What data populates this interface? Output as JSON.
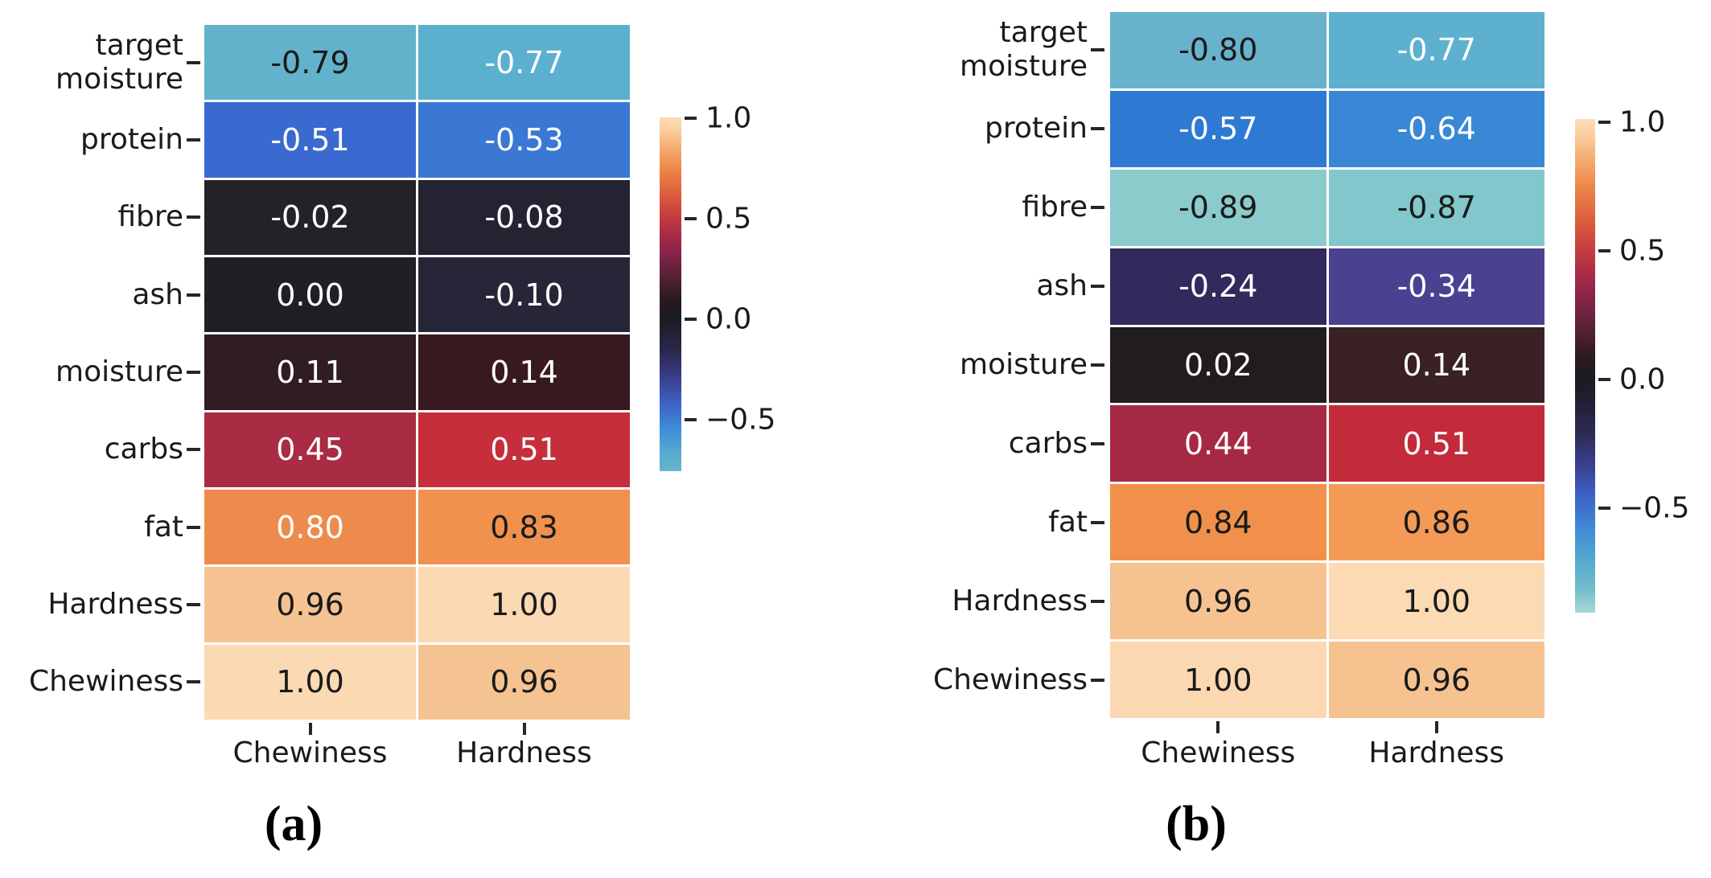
{
  "figure": {
    "background": "#ffffff",
    "text_color": "#1a1a1a",
    "panels": [
      {
        "caption": "(a)",
        "row_labels": [
          "target\nmoisture",
          "protein",
          "fibre",
          "ash",
          "moisture",
          "carbs",
          "fat",
          "Hardness",
          "Chewiness"
        ],
        "col_labels": [
          "Chewiness",
          "Hardness"
        ],
        "cells": [
          [
            {
              "v": "-0.79",
              "bg": "#63b2cc",
              "fg": "#1a1a1a"
            },
            {
              "v": "-0.77",
              "bg": "#5ab0ce",
              "fg": "#ffffff"
            }
          ],
          [
            {
              "v": "-0.51",
              "bg": "#3a69d0",
              "fg": "#ffffff"
            },
            {
              "v": "-0.53",
              "bg": "#3b78d3",
              "fg": "#ffffff"
            }
          ],
          [
            {
              "v": "-0.02",
              "bg": "#222228",
              "fg": "#ffffff"
            },
            {
              "v": "-0.08",
              "bg": "#232332",
              "fg": "#ffffff"
            }
          ],
          [
            {
              "v": "0.00",
              "bg": "#1f1f25",
              "fg": "#ffffff"
            },
            {
              "v": "-0.10",
              "bg": "#272638",
              "fg": "#ffffff"
            }
          ],
          [
            {
              "v": "0.11",
              "bg": "#301d22",
              "fg": "#ffffff"
            },
            {
              "v": "0.14",
              "bg": "#37191f",
              "fg": "#ffffff"
            }
          ],
          [
            {
              "v": "0.45",
              "bg": "#a92b44",
              "fg": "#ffffff"
            },
            {
              "v": "0.51",
              "bg": "#c62e3b",
              "fg": "#ffffff"
            }
          ],
          [
            {
              "v": "0.80",
              "bg": "#ec8b4c",
              "fg": "#ffffff"
            },
            {
              "v": "0.83",
              "bg": "#f0914e",
              "fg": "#1a1a1a"
            }
          ],
          [
            {
              "v": "0.96",
              "bg": "#f5c392",
              "fg": "#1a1a1a"
            },
            {
              "v": "1.00",
              "bg": "#fbd9b3",
              "fg": "#1a1a1a"
            }
          ],
          [
            {
              "v": "1.00",
              "bg": "#fbd9b3",
              "fg": "#1a1a1a"
            },
            {
              "v": "0.96",
              "bg": "#f5c392",
              "fg": "#1a1a1a"
            }
          ]
        ],
        "colorbar": {
          "ticks": [
            "1.0",
            "0.5",
            "0.0",
            "−0.5"
          ],
          "gradient": [
            [
              "0%",
              "#fddcb6"
            ],
            [
              "2.8%",
              "#fbd2a4"
            ],
            [
              "8.4%",
              "#f5ad72"
            ],
            [
              "14%",
              "#ef8a4b"
            ],
            [
              "22.3%",
              "#da5a3c"
            ],
            [
              "27.9%",
              "#c43d3f"
            ],
            [
              "33.5%",
              "#a62a47"
            ],
            [
              "39.1%",
              "#83234a"
            ],
            [
              "45.8%",
              "#4f2130"
            ],
            [
              "51.4%",
              "#2b1a20"
            ],
            [
              "55.9%",
              "#1b1b21"
            ],
            [
              "60.3%",
              "#202032"
            ],
            [
              "67%",
              "#2d2a52"
            ],
            [
              "73.7%",
              "#3a3f8c"
            ],
            [
              "81%",
              "#3c63c8"
            ],
            [
              "88.3%",
              "#418ed6"
            ],
            [
              "95%",
              "#57abce"
            ],
            [
              "100%",
              "#68b5cb"
            ]
          ]
        }
      },
      {
        "caption": "(b)",
        "row_labels": [
          "target\nmoisture",
          "protein",
          "fibre",
          "ash",
          "moisture",
          "carbs",
          "fat",
          "Hardness",
          "Chewiness"
        ],
        "col_labels": [
          "Chewiness",
          "Hardness"
        ],
        "cells": [
          [
            {
              "v": "-0.80",
              "bg": "#68b2cb",
              "fg": "#1a1a1a"
            },
            {
              "v": "-0.77",
              "bg": "#5db1cf",
              "fg": "#ffffff"
            }
          ],
          [
            {
              "v": "-0.57",
              "bg": "#2e7ad3",
              "fg": "#ffffff"
            },
            {
              "v": "-0.64",
              "bg": "#3a88d5",
              "fg": "#ffffff"
            }
          ],
          [
            {
              "v": "-0.89",
              "bg": "#8ccbcb",
              "fg": "#1a1a1a"
            },
            {
              "v": "-0.87",
              "bg": "#82c7cc",
              "fg": "#1a1a1a"
            }
          ],
          [
            {
              "v": "-0.24",
              "bg": "#32295c",
              "fg": "#ffffff"
            },
            {
              "v": "-0.34",
              "bg": "#4a4191",
              "fg": "#ffffff"
            }
          ],
          [
            {
              "v": "0.02",
              "bg": "#211c20",
              "fg": "#ffffff"
            },
            {
              "v": "0.14",
              "bg": "#3a2126",
              "fg": "#ffffff"
            }
          ],
          [
            {
              "v": "0.44",
              "bg": "#a62944",
              "fg": "#ffffff"
            },
            {
              "v": "0.51",
              "bg": "#c32a3a",
              "fg": "#ffffff"
            }
          ],
          [
            {
              "v": "0.84",
              "bg": "#f0904b",
              "fg": "#1a1a1a"
            },
            {
              "v": "0.86",
              "bg": "#f29a56",
              "fg": "#1a1a1a"
            }
          ],
          [
            {
              "v": "0.96",
              "bg": "#f6c290",
              "fg": "#1a1a1a"
            },
            {
              "v": "1.00",
              "bg": "#fcdab4",
              "fg": "#1a1a1a"
            }
          ],
          [
            {
              "v": "1.00",
              "bg": "#fbd8b2",
              "fg": "#1a1a1a"
            },
            {
              "v": "0.96",
              "bg": "#f5c290",
              "fg": "#1a1a1a"
            }
          ]
        ],
        "colorbar": {
          "ticks": [
            "1.0",
            "0.5",
            "0.0",
            "−0.5"
          ],
          "gradient": [
            [
              "0%",
              "#fddcb6"
            ],
            [
              "2.6%",
              "#fbd2a4"
            ],
            [
              "7.9%",
              "#f5ad72"
            ],
            [
              "13.2%",
              "#ef8a4b"
            ],
            [
              "21.2%",
              "#da5a3c"
            ],
            [
              "26.5%",
              "#c43d3f"
            ],
            [
              "31.7%",
              "#a62a47"
            ],
            [
              "37%",
              "#83234a"
            ],
            [
              "43.4%",
              "#4f2130"
            ],
            [
              "48.7%",
              "#2b1a20"
            ],
            [
              "52.9%",
              "#1b1b21"
            ],
            [
              "57.1%",
              "#202032"
            ],
            [
              "63.5%",
              "#2d2a52"
            ],
            [
              "69.8%",
              "#3a3f8c"
            ],
            [
              "76.7%",
              "#3c63c8"
            ],
            [
              "83.6%",
              "#418ed6"
            ],
            [
              "89.9%",
              "#57abce"
            ],
            [
              "95.2%",
              "#73bccb"
            ],
            [
              "100%",
              "#a5d8d6"
            ]
          ]
        }
      }
    ]
  },
  "chart_data": [
    {
      "type": "heatmap",
      "title": "(a)",
      "rows": [
        "target moisture",
        "protein",
        "fibre",
        "ash",
        "moisture",
        "carbs",
        "fat",
        "Hardness",
        "Chewiness"
      ],
      "columns": [
        "Chewiness",
        "Hardness"
      ],
      "values": [
        [
          -0.79,
          -0.77
        ],
        [
          -0.51,
          -0.53
        ],
        [
          -0.02,
          -0.08
        ],
        [
          0.0,
          -0.1
        ],
        [
          0.11,
          0.14
        ],
        [
          0.45,
          0.51
        ],
        [
          0.8,
          0.83
        ],
        [
          0.96,
          1.0
        ],
        [
          1.0,
          0.96
        ]
      ],
      "colormap": "icefire",
      "colorbar_ticks": [
        1.0,
        0.5,
        0.0,
        -0.5
      ],
      "vmin": -0.79,
      "vmax": 1.0,
      "annotations": true,
      "legend_position": "right"
    },
    {
      "type": "heatmap",
      "title": "(b)",
      "rows": [
        "target moisture",
        "protein",
        "fibre",
        "ash",
        "moisture",
        "carbs",
        "fat",
        "Hardness",
        "Chewiness"
      ],
      "columns": [
        "Chewiness",
        "Hardness"
      ],
      "values": [
        [
          -0.8,
          -0.77
        ],
        [
          -0.57,
          -0.64
        ],
        [
          -0.89,
          -0.87
        ],
        [
          -0.24,
          -0.34
        ],
        [
          0.02,
          0.14
        ],
        [
          0.44,
          0.51
        ],
        [
          0.84,
          0.86
        ],
        [
          0.96,
          1.0
        ],
        [
          1.0,
          0.96
        ]
      ],
      "colormap": "icefire",
      "colorbar_ticks": [
        1.0,
        0.5,
        0.0,
        -0.5
      ],
      "vmin": -0.89,
      "vmax": 1.0,
      "annotations": true,
      "legend_position": "right"
    }
  ]
}
